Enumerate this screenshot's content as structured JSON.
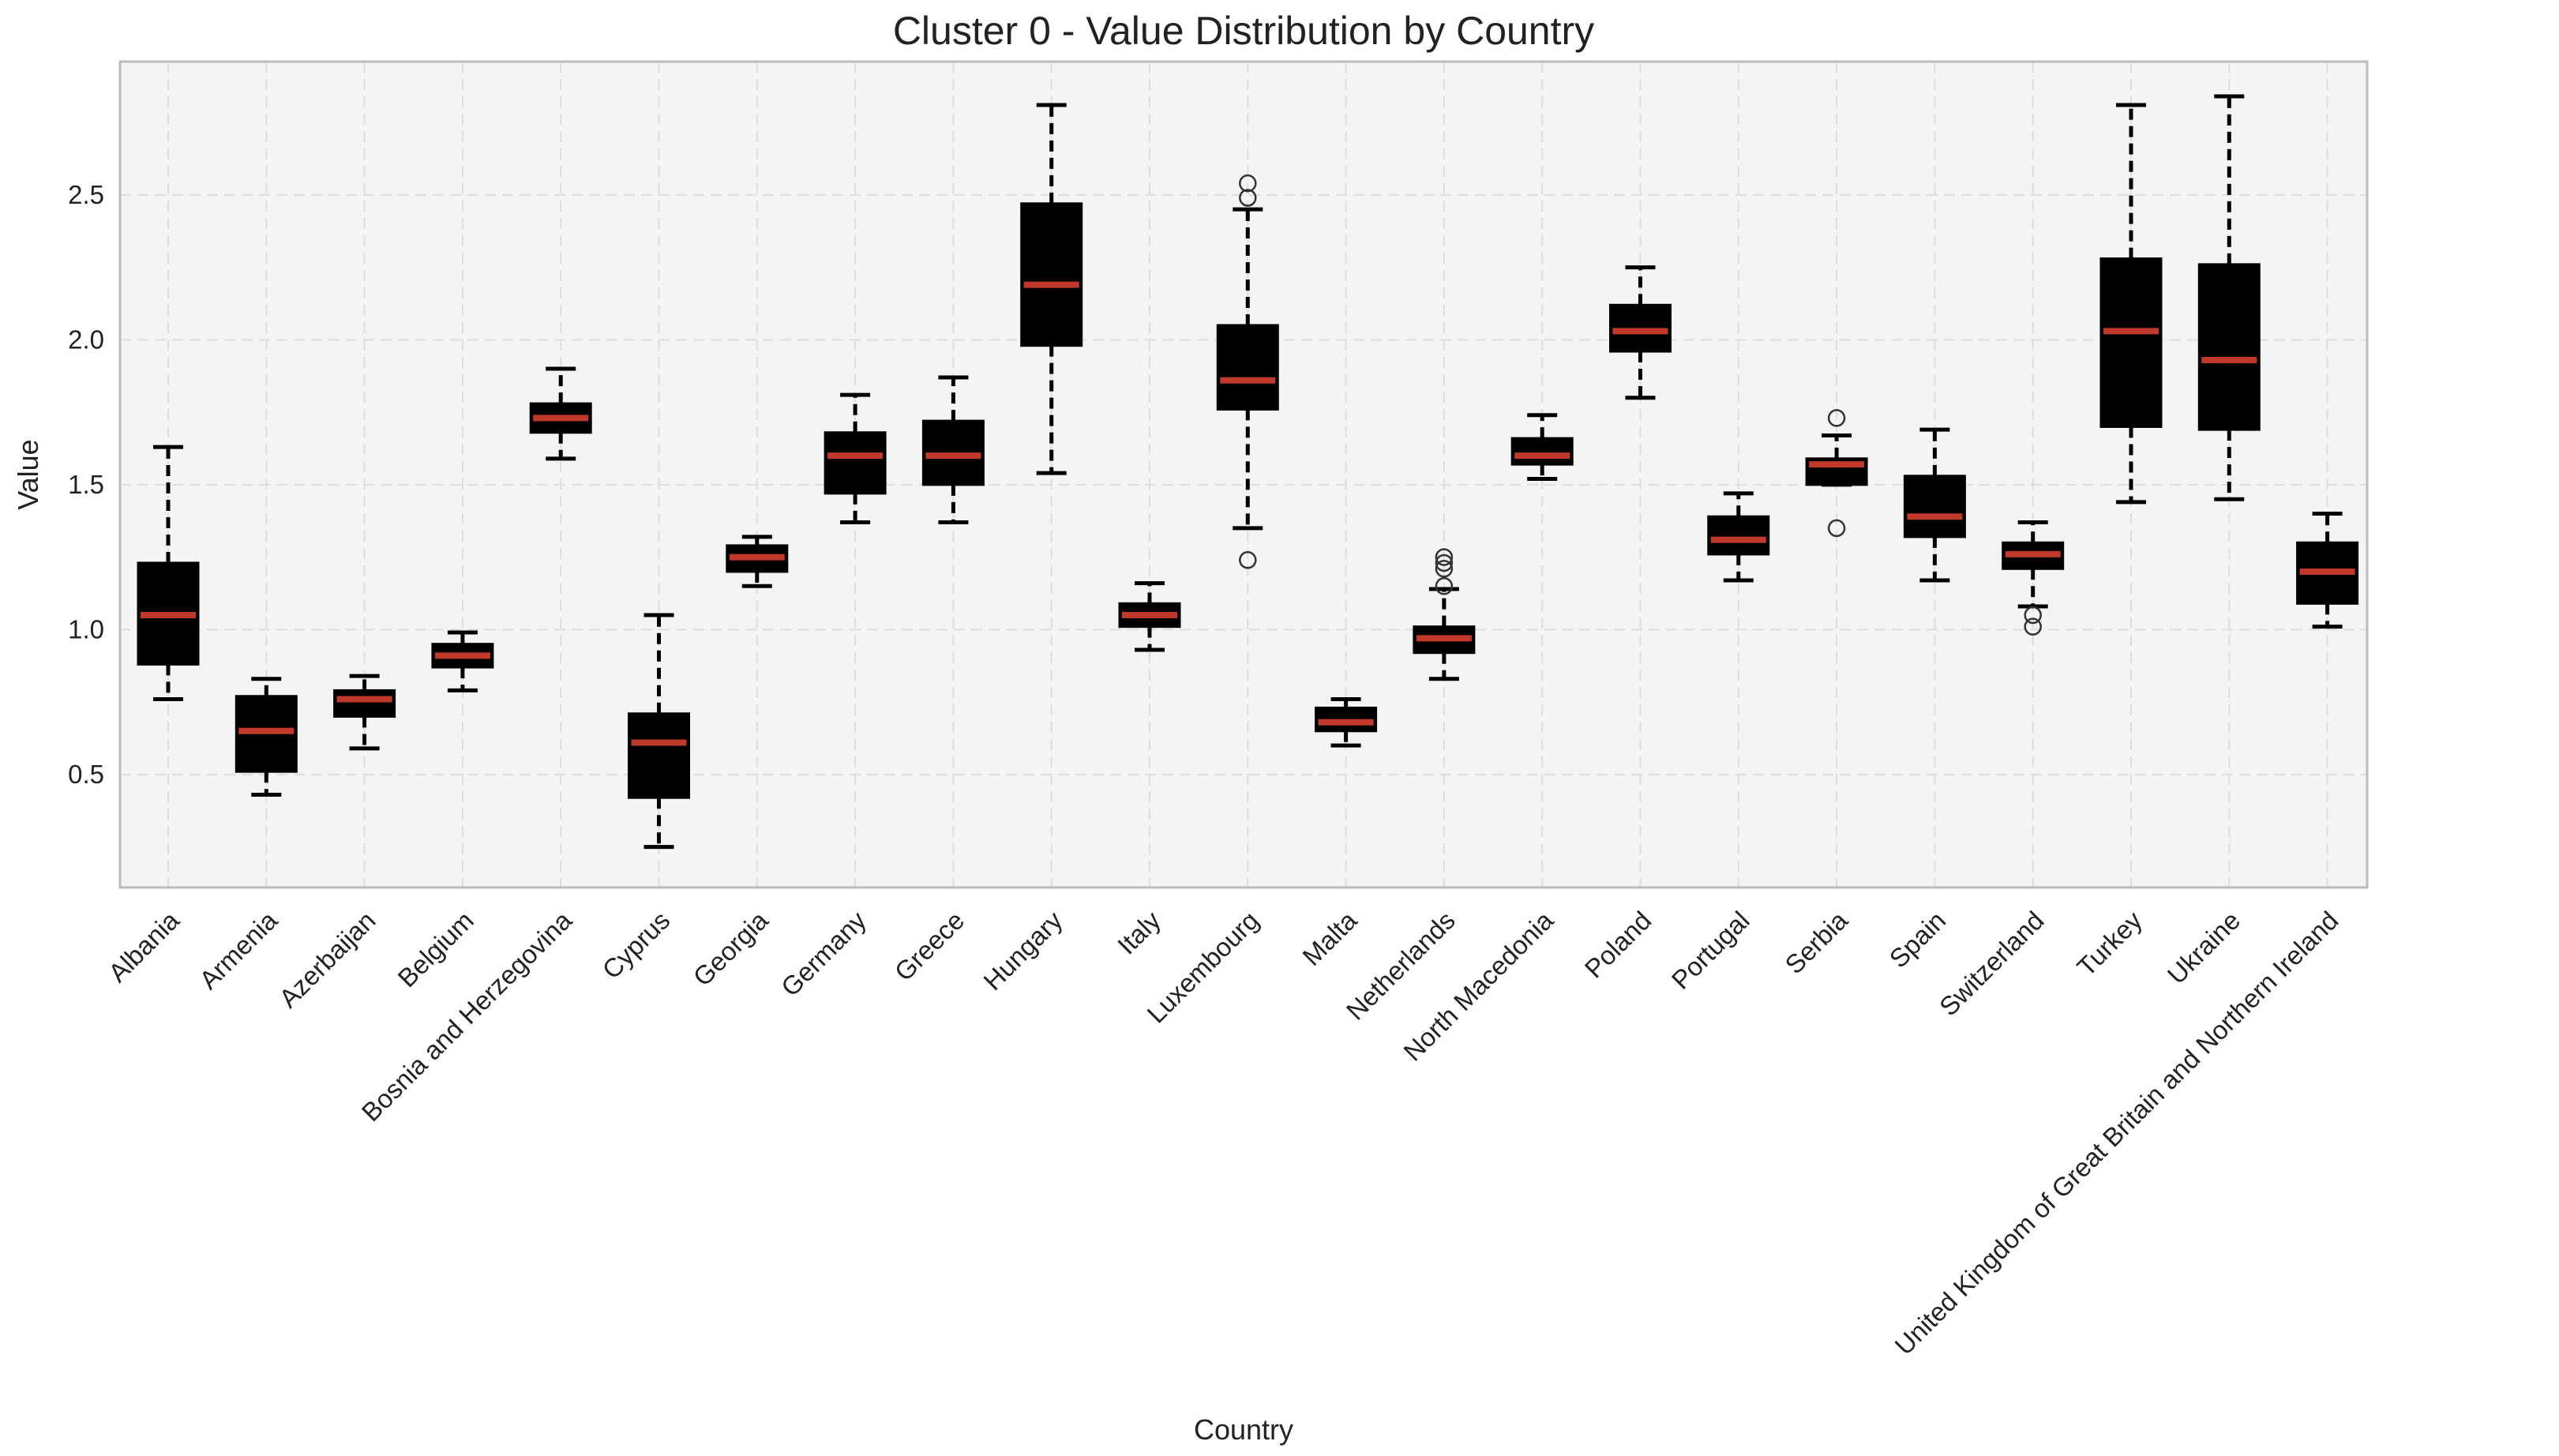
{
  "chart_data": {
    "type": "box",
    "title": "Cluster 0 - Value Distribution by Country",
    "xlabel": "Country",
    "ylabel": "Value",
    "ylim": [
      0.11,
      2.96
    ],
    "yticks": [
      "0.5",
      "1.0",
      "1.5",
      "2.0",
      "2.5"
    ],
    "grid": true,
    "colors": {
      "box_fill": "#000000",
      "median": "#c0392b",
      "whisker": "#000000",
      "plot_bg": "#f4f4f4",
      "grid": "#dddddd",
      "frame": "#bbbbbb"
    },
    "categories": [
      "Albania",
      "Armenia",
      "Azerbaijan",
      "Belgium",
      "Bosnia and Herzegovina",
      "Cyprus",
      "Georgia",
      "Germany",
      "Greece",
      "Hungary",
      "Italy",
      "Luxembourg",
      "Malta",
      "Netherlands",
      "North Macedonia",
      "Poland",
      "Portugal",
      "Serbia",
      "Spain",
      "Switzerland",
      "Turkey",
      "Ukraine",
      "United Kingdom of Great Britain and Northern Ireland"
    ],
    "boxes": [
      {
        "name": "Albania",
        "whislo": 0.76,
        "q1": 0.88,
        "med": 1.05,
        "q3": 1.23,
        "whishi": 1.63,
        "fliers": []
      },
      {
        "name": "Armenia",
        "whislo": 0.43,
        "q1": 0.51,
        "med": 0.65,
        "q3": 0.77,
        "whishi": 0.83,
        "fliers": []
      },
      {
        "name": "Azerbaijan",
        "whislo": 0.59,
        "q1": 0.7,
        "med": 0.76,
        "q3": 0.79,
        "whishi": 0.84,
        "fliers": []
      },
      {
        "name": "Belgium",
        "whislo": 0.79,
        "q1": 0.87,
        "med": 0.91,
        "q3": 0.95,
        "whishi": 0.99,
        "fliers": []
      },
      {
        "name": "Bosnia and Herzegovina",
        "whislo": 1.59,
        "q1": 1.68,
        "med": 1.73,
        "q3": 1.78,
        "whishi": 1.9,
        "fliers": []
      },
      {
        "name": "Cyprus",
        "whislo": 0.25,
        "q1": 0.42,
        "med": 0.61,
        "q3": 0.71,
        "whishi": 1.05,
        "fliers": []
      },
      {
        "name": "Georgia",
        "whislo": 1.15,
        "q1": 1.2,
        "med": 1.25,
        "q3": 1.29,
        "whishi": 1.32,
        "fliers": []
      },
      {
        "name": "Germany",
        "whislo": 1.37,
        "q1": 1.47,
        "med": 1.6,
        "q3": 1.68,
        "whishi": 1.81,
        "fliers": []
      },
      {
        "name": "Greece",
        "whislo": 1.37,
        "q1": 1.5,
        "med": 1.6,
        "q3": 1.72,
        "whishi": 1.87,
        "fliers": []
      },
      {
        "name": "Hungary",
        "whislo": 1.54,
        "q1": 1.98,
        "med": 2.19,
        "q3": 2.47,
        "whishi": 2.81,
        "fliers": []
      },
      {
        "name": "Italy",
        "whislo": 0.93,
        "q1": 1.01,
        "med": 1.05,
        "q3": 1.09,
        "whishi": 1.16,
        "fliers": []
      },
      {
        "name": "Luxembourg",
        "whislo": 1.35,
        "q1": 1.76,
        "med": 1.86,
        "q3": 2.05,
        "whishi": 2.45,
        "fliers": [
          1.24,
          2.49,
          2.54
        ]
      },
      {
        "name": "Malta",
        "whislo": 0.6,
        "q1": 0.65,
        "med": 0.68,
        "q3": 0.73,
        "whishi": 0.76,
        "fliers": []
      },
      {
        "name": "Netherlands",
        "whislo": 0.83,
        "q1": 0.92,
        "med": 0.97,
        "q3": 1.01,
        "whishi": 1.14,
        "fliers": [
          1.15,
          1.21,
          1.23,
          1.25
        ]
      },
      {
        "name": "North Macedonia",
        "whislo": 1.52,
        "q1": 1.57,
        "med": 1.6,
        "q3": 1.66,
        "whishi": 1.74,
        "fliers": []
      },
      {
        "name": "Poland",
        "whislo": 1.8,
        "q1": 1.96,
        "med": 2.03,
        "q3": 2.12,
        "whishi": 2.25,
        "fliers": []
      },
      {
        "name": "Portugal",
        "whislo": 1.17,
        "q1": 1.26,
        "med": 1.31,
        "q3": 1.39,
        "whishi": 1.47,
        "fliers": []
      },
      {
        "name": "Serbia",
        "whislo": 1.5,
        "q1": 1.5,
        "med": 1.57,
        "q3": 1.59,
        "whishi": 1.67,
        "fliers": [
          1.35,
          1.73
        ]
      },
      {
        "name": "Spain",
        "whislo": 1.17,
        "q1": 1.32,
        "med": 1.39,
        "q3": 1.53,
        "whishi": 1.69,
        "fliers": []
      },
      {
        "name": "Switzerland",
        "whislo": 1.08,
        "q1": 1.21,
        "med": 1.26,
        "q3": 1.3,
        "whishi": 1.37,
        "fliers": [
          1.01,
          1.05
        ]
      },
      {
        "name": "Turkey",
        "whislo": 1.44,
        "q1": 1.7,
        "med": 2.03,
        "q3": 2.28,
        "whishi": 2.81,
        "fliers": []
      },
      {
        "name": "Ukraine",
        "whislo": 1.45,
        "q1": 1.69,
        "med": 1.93,
        "q3": 2.26,
        "whishi": 2.84,
        "fliers": []
      },
      {
        "name": "United Kingdom of Great Britain and Northern Ireland",
        "whislo": 1.01,
        "q1": 1.09,
        "med": 1.2,
        "q3": 1.3,
        "whishi": 1.4,
        "fliers": []
      }
    ]
  }
}
